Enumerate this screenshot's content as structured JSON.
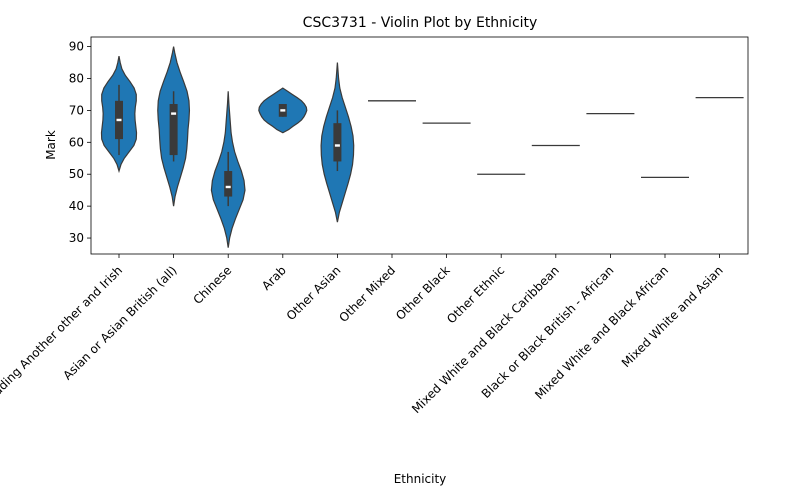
{
  "chart_data": {
    "type": "violin",
    "title": "CSC3731 - Violin Plot by Ethnicity",
    "xlabel": "Ethnicity",
    "ylabel": "Mark",
    "ylim": [
      25,
      93
    ],
    "yticks": [
      30,
      40,
      50,
      60,
      70,
      80,
      90
    ],
    "grid": false,
    "legend": "none",
    "color": "#1f77b4",
    "edge_color": "#3a3a3a",
    "categories": [
      {
        "name": "White including Another other and Irish",
        "kind": "violin",
        "range": [
          51,
          87
        ],
        "density": [
          [
            51,
            0
          ],
          [
            53,
            0.08
          ],
          [
            55,
            0.22
          ],
          [
            57,
            0.42
          ],
          [
            59,
            0.62
          ],
          [
            61,
            0.72
          ],
          [
            63,
            0.73
          ],
          [
            65,
            0.7
          ],
          [
            67,
            0.67
          ],
          [
            69,
            0.66
          ],
          [
            71,
            0.68
          ],
          [
            73,
            0.72
          ],
          [
            75,
            0.72
          ],
          [
            77,
            0.63
          ],
          [
            79,
            0.46
          ],
          [
            81,
            0.26
          ],
          [
            83,
            0.12
          ],
          [
            85,
            0.05
          ],
          [
            87,
            0
          ]
        ],
        "q1": 61,
        "median": 67,
        "q3": 73,
        "whisker": [
          56,
          78
        ]
      },
      {
        "name": "Asian or Asian British (all)",
        "kind": "violin",
        "range": [
          40,
          90
        ],
        "density": [
          [
            40,
            0
          ],
          [
            43,
            0.06
          ],
          [
            46,
            0.16
          ],
          [
            49,
            0.28
          ],
          [
            52,
            0.4
          ],
          [
            55,
            0.5
          ],
          [
            58,
            0.55
          ],
          [
            61,
            0.58
          ],
          [
            64,
            0.6
          ],
          [
            67,
            0.64
          ],
          [
            70,
            0.66
          ],
          [
            73,
            0.64
          ],
          [
            76,
            0.56
          ],
          [
            79,
            0.42
          ],
          [
            82,
            0.27
          ],
          [
            85,
            0.14
          ],
          [
            88,
            0.05
          ],
          [
            90,
            0
          ]
        ],
        "q1": 56,
        "median": 69,
        "q3": 72,
        "whisker": [
          54,
          76
        ]
      },
      {
        "name": "Chinese",
        "kind": "violin",
        "range": [
          27,
          76
        ],
        "density": [
          [
            27,
            0
          ],
          [
            30,
            0.06
          ],
          [
            33,
            0.16
          ],
          [
            36,
            0.3
          ],
          [
            39,
            0.46
          ],
          [
            42,
            0.62
          ],
          [
            45,
            0.7
          ],
          [
            48,
            0.66
          ],
          [
            51,
            0.55
          ],
          [
            54,
            0.4
          ],
          [
            57,
            0.27
          ],
          [
            60,
            0.18
          ],
          [
            63,
            0.12
          ],
          [
            66,
            0.09
          ],
          [
            69,
            0.06
          ],
          [
            72,
            0.03
          ],
          [
            76,
            0
          ]
        ],
        "q1": 43,
        "median": 46,
        "q3": 51,
        "whisker": [
          40,
          57
        ]
      },
      {
        "name": "Arab",
        "kind": "violin",
        "range": [
          63,
          77
        ],
        "density": [
          [
            63,
            0
          ],
          [
            64,
            0.25
          ],
          [
            65,
            0.42
          ],
          [
            66,
            0.62
          ],
          [
            67,
            0.78
          ],
          [
            68,
            0.88
          ],
          [
            69,
            0.95
          ],
          [
            70,
            1.0
          ],
          [
            71,
            0.98
          ],
          [
            72,
            0.9
          ],
          [
            73,
            0.78
          ],
          [
            74,
            0.6
          ],
          [
            75,
            0.4
          ],
          [
            76,
            0.2
          ],
          [
            77,
            0
          ]
        ],
        "q1": 68,
        "median": 70,
        "q3": 72,
        "whisker": [
          68,
          72
        ]
      },
      {
        "name": "Other Asian",
        "kind": "violin",
        "range": [
          35,
          85
        ],
        "density": [
          [
            35,
            0
          ],
          [
            38,
            0.08
          ],
          [
            41,
            0.2
          ],
          [
            44,
            0.32
          ],
          [
            47,
            0.44
          ],
          [
            50,
            0.55
          ],
          [
            53,
            0.63
          ],
          [
            56,
            0.67
          ],
          [
            59,
            0.68
          ],
          [
            62,
            0.65
          ],
          [
            65,
            0.57
          ],
          [
            68,
            0.46
          ],
          [
            71,
            0.33
          ],
          [
            74,
            0.2
          ],
          [
            77,
            0.1
          ],
          [
            80,
            0.05
          ],
          [
            83,
            0.02
          ],
          [
            85,
            0
          ]
        ],
        "q1": 54,
        "median": 59,
        "q3": 66,
        "whisker": [
          51,
          70
        ]
      },
      {
        "name": "Other Mixed",
        "kind": "line",
        "value": 73
      },
      {
        "name": "Other Black",
        "kind": "line",
        "value": 66
      },
      {
        "name": "Other Ethnic",
        "kind": "line",
        "value": 50
      },
      {
        "name": "Mixed White and Black Caribbean",
        "kind": "line",
        "value": 59
      },
      {
        "name": "Black or Black British - African",
        "kind": "line",
        "value": 69
      },
      {
        "name": "Mixed White and Black African",
        "kind": "line",
        "value": 49
      },
      {
        "name": "Mixed White and Asian",
        "kind": "line",
        "value": 74
      }
    ]
  }
}
